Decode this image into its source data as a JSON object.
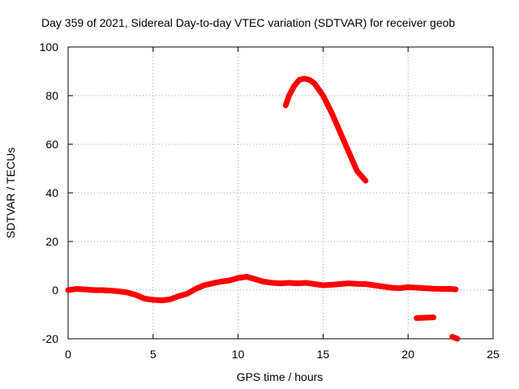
{
  "chart_data": {
    "type": "line",
    "title": "Day 359 of 2021, Sidereal Day-to-day VTEC variation (SDTVAR) for receiver geob",
    "xlabel": "GPS time / hours",
    "ylabel": "SDTVAR / TECUs",
    "xlim": [
      0,
      25
    ],
    "ylim": [
      -20,
      100
    ],
    "xticks": [
      0,
      5,
      10,
      15,
      20,
      25
    ],
    "yticks": [
      -20,
      0,
      20,
      40,
      60,
      80,
      100
    ],
    "grid": true,
    "legend": "none",
    "series": [
      {
        "name": "main",
        "color": "#ff0000",
        "x": [
          0.0,
          0.5,
          1.0,
          1.5,
          2.0,
          2.5,
          3.0,
          3.5,
          4.0,
          4.5,
          5.0,
          5.5,
          6.0,
          6.5,
          7.0,
          7.5,
          8.0,
          8.5,
          9.0,
          9.5,
          10.0,
          10.5,
          11.0,
          11.5,
          12.0,
          12.5,
          13.0,
          13.5,
          14.0,
          14.5,
          15.0,
          15.5,
          16.0,
          16.5,
          17.0,
          17.5,
          18.0,
          18.5,
          19.0,
          19.5,
          20.0,
          20.5,
          21.0,
          21.5,
          22.0,
          22.5,
          22.8
        ],
        "y": [
          0.0,
          0.5,
          0.3,
          0.0,
          0.0,
          -0.2,
          -0.5,
          -1.0,
          -2.0,
          -3.5,
          -4.0,
          -4.2,
          -3.8,
          -2.5,
          -1.5,
          0.5,
          2.0,
          2.8,
          3.5,
          4.0,
          5.0,
          5.5,
          4.5,
          3.5,
          3.0,
          2.8,
          3.0,
          2.8,
          3.0,
          2.5,
          2.0,
          2.2,
          2.5,
          2.8,
          2.6,
          2.5,
          2.0,
          1.5,
          1.0,
          0.8,
          1.2,
          1.0,
          0.8,
          0.6,
          0.5,
          0.5,
          0.3
        ]
      },
      {
        "name": "peak",
        "color": "#ff0000",
        "x": [
          12.8,
          13.0,
          13.3,
          13.6,
          13.9,
          14.2,
          14.5,
          15.0,
          15.5,
          16.0,
          16.5,
          17.0,
          17.5
        ],
        "y": [
          76,
          80,
          84,
          86.5,
          87,
          86.5,
          85,
          80,
          73,
          65,
          57,
          49,
          45
        ]
      },
      {
        "name": "segment-21h",
        "color": "#ff0000",
        "x": [
          20.5,
          21.5
        ],
        "y": [
          -11.5,
          -11.2
        ]
      },
      {
        "name": "segment-23h",
        "color": "#ff0000",
        "x": [
          22.6,
          22.9
        ],
        "y": [
          -19.2,
          -20
        ]
      }
    ]
  }
}
